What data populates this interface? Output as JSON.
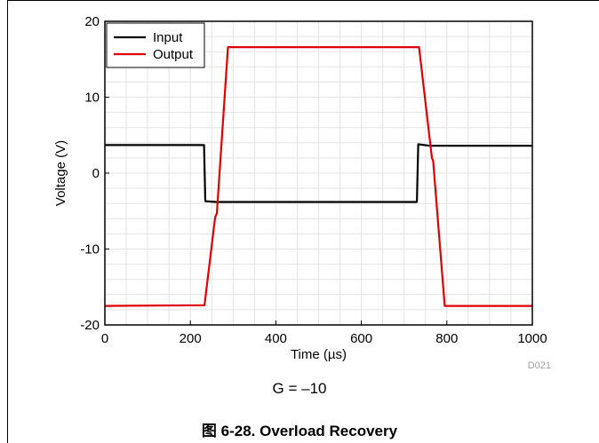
{
  "chart_data": {
    "type": "line",
    "xlabel": "Time (µs)",
    "ylabel": "Voltage (V)",
    "xlim": [
      0,
      1000
    ],
    "ylim": [
      -20,
      20
    ],
    "xticks": [
      0,
      200,
      400,
      600,
      800,
      1000
    ],
    "yticks": [
      -20,
      -10,
      0,
      10,
      20
    ],
    "grid": true,
    "legend_position": "top-left",
    "series": [
      {
        "name": "Input",
        "color": "#000000",
        "x": [
          0,
          232,
          235,
          260,
          730,
          733,
          760,
          1000
        ],
        "y": [
          3.7,
          3.7,
          -3.7,
          -3.8,
          -3.8,
          3.8,
          3.6,
          3.6
        ]
      },
      {
        "name": "Output",
        "color": "#e00000",
        "x": [
          0,
          233,
          258,
          262,
          288,
          735,
          765,
          768,
          795,
          1000
        ],
        "y": [
          -17.5,
          -17.4,
          -5.8,
          -5.3,
          16.6,
          16.6,
          2.0,
          1.6,
          -17.5,
          -17.5
        ]
      }
    ]
  },
  "code_label": "D021",
  "gain_note": "G = –10",
  "figure_caption": "图 6-28. Overload Recovery"
}
